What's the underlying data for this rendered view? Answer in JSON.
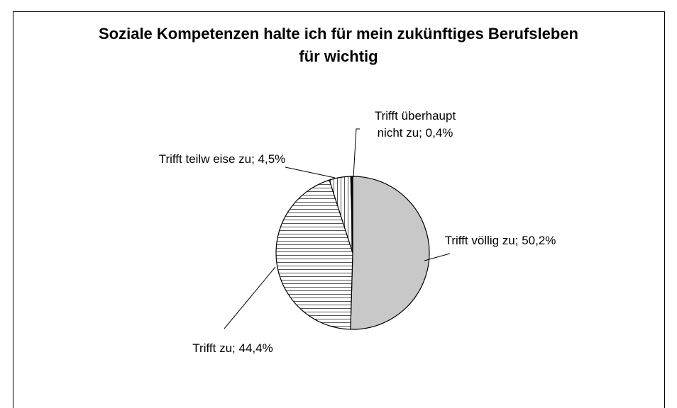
{
  "chart_data": {
    "type": "pie",
    "title": "Soziale Kompetenzen halte ich für mein zukünftiges Berufsleben für wichtig",
    "categories": [
      "Trifft völlig zu;",
      "Trifft zu;",
      "Trifft teilw eise zu;",
      "Trifft überhaupt nicht zu;"
    ],
    "values": [
      50.2,
      44.4,
      4.5,
      0.4
    ],
    "value_labels": [
      "50,2%",
      "44,4%",
      "4,5%",
      "0,4%"
    ],
    "colors": [
      "#c8c8c8",
      "#ffffff",
      "#ffffff",
      "#000000"
    ],
    "patterns": [
      "solid",
      "horizontal",
      "vertical",
      "solid"
    ]
  }
}
